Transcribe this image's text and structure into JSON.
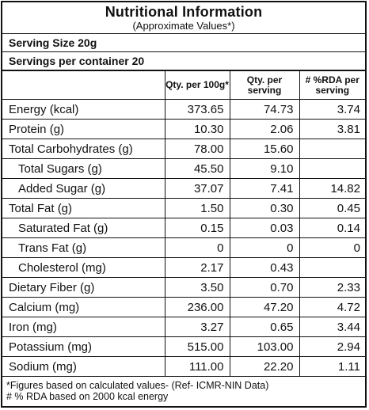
{
  "title": "Nutritional Information",
  "subtitle": "(Approximate Values*)",
  "serving_size": "Serving Size 20g",
  "servings_per_container": "Servings per container 20",
  "columns": {
    "qty_per_100g": "Qty. per 100g*",
    "qty_per_serving": "Qty. per serving",
    "rda_per_serving": "# %RDA per serving"
  },
  "rows": [
    {
      "name": "Energy (kcal)",
      "per_100g": "373.65",
      "per_serving": "74.73",
      "rda": "3.74",
      "sub": false
    },
    {
      "name": "Protein (g)",
      "per_100g": "10.30",
      "per_serving": "2.06",
      "rda": "3.81",
      "sub": false
    },
    {
      "name": "Total Carbohydrates (g)",
      "per_100g": "78.00",
      "per_serving": "15.60",
      "rda": "",
      "sub": false
    },
    {
      "name": "Total Sugars (g)",
      "per_100g": "45.50",
      "per_serving": "9.10",
      "rda": "",
      "sub": true
    },
    {
      "name": "Added Sugar (g)",
      "per_100g": "37.07",
      "per_serving": "7.41",
      "rda": "14.82",
      "sub": true
    },
    {
      "name": "Total Fat (g)",
      "per_100g": "1.50",
      "per_serving": "0.30",
      "rda": "0.45",
      "sub": false
    },
    {
      "name": "Saturated Fat (g)",
      "per_100g": "0.15",
      "per_serving": "0.03",
      "rda": "0.14",
      "sub": true
    },
    {
      "name": "Trans Fat (g)",
      "per_100g": "0",
      "per_serving": "0",
      "rda": "0",
      "sub": true
    },
    {
      "name": "Cholesterol (mg)",
      "per_100g": "2.17",
      "per_serving": "0.43",
      "rda": "",
      "sub": true
    },
    {
      "name": "Dietary Fiber (g)",
      "per_100g": "3.50",
      "per_serving": "0.70",
      "rda": "2.33",
      "sub": false
    },
    {
      "name": "Calcium (mg)",
      "per_100g": "236.00",
      "per_serving": "47.20",
      "rda": "4.72",
      "sub": false
    },
    {
      "name": "Iron (mg)",
      "per_100g": "3.27",
      "per_serving": "0.65",
      "rda": "3.44",
      "sub": false
    },
    {
      "name": "Potassium (mg)",
      "per_100g": "515.00",
      "per_serving": "103.00",
      "rda": "2.94",
      "sub": false
    },
    {
      "name": "Sodium (mg)",
      "per_100g": "111.00",
      "per_serving": "22.20",
      "rda": "1.11",
      "sub": false
    }
  ],
  "footnotes": [
    "*Figures based on calculated values- (Ref- ICMR-NIN Data)",
    "# % RDA based on 2000 kcal energy"
  ]
}
